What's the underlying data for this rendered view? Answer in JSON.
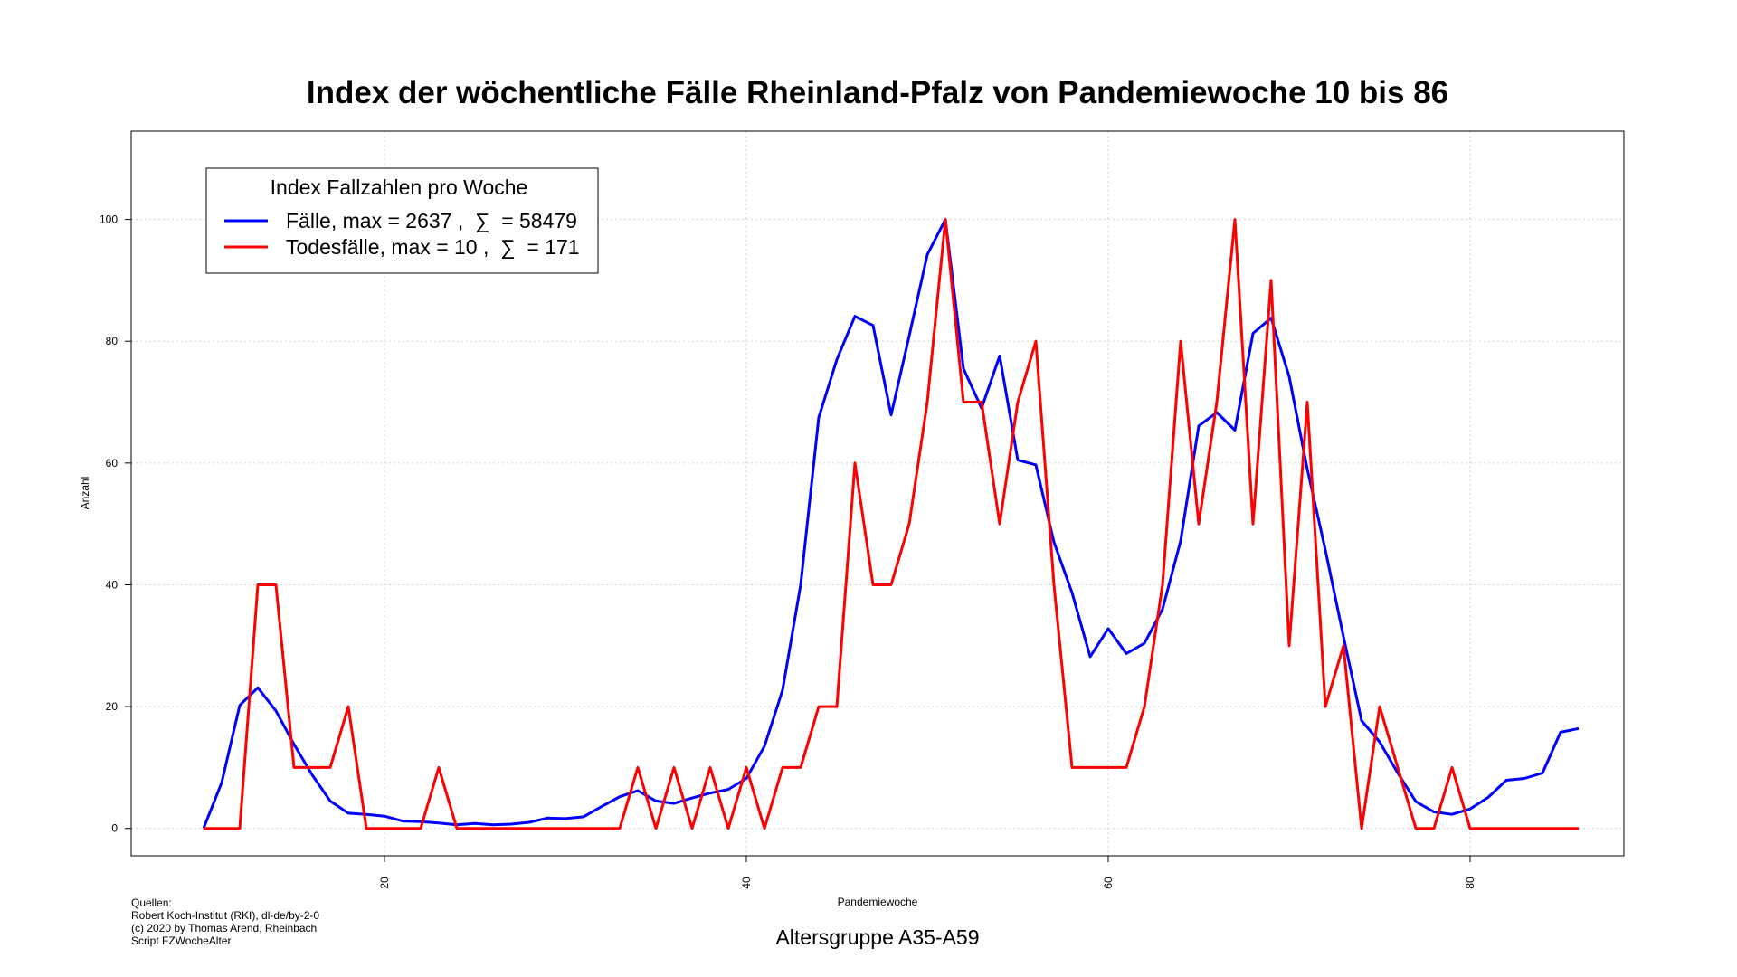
{
  "chart_data": {
    "type": "line",
    "title": "Index der wöchentliche Fälle Rheinland-Pfalz von Pandemiewoche 10 bis 86",
    "subtitle": "Altersgruppe A35-A59",
    "xlabel": "Pandemiewoche",
    "ylabel": "Anzahl",
    "xlim": [
      6,
      88.5
    ],
    "ylim": [
      -4.5,
      114.5
    ],
    "x_ticks": [
      20,
      40,
      60,
      80
    ],
    "y_ticks": [
      0,
      20,
      40,
      60,
      80,
      100
    ],
    "grid": true,
    "legend": {
      "title": "Index Fallzahlen pro Woche",
      "position": "top-left"
    },
    "series": [
      {
        "name": "Fälle",
        "legend_label": "Fälle, max = 2637 ,  ∑  = 58479",
        "color": "#0000ff",
        "x": [
          10,
          11,
          12,
          13,
          14,
          15,
          16,
          17,
          18,
          19,
          20,
          21,
          22,
          23,
          24,
          25,
          26,
          27,
          28,
          29,
          30,
          31,
          32,
          33,
          34,
          35,
          36,
          37,
          38,
          39,
          40,
          41,
          42,
          43,
          44,
          45,
          46,
          47,
          48,
          49,
          50,
          51,
          52,
          53,
          54,
          55,
          56,
          57,
          58,
          59,
          60,
          61,
          62,
          63,
          64,
          65,
          66,
          67,
          68,
          69,
          70,
          71,
          72,
          73,
          74,
          75,
          76,
          77,
          78,
          79,
          80,
          81,
          82,
          83,
          84,
          85,
          86
        ],
        "values": [
          0,
          7.5,
          20.2,
          23.1,
          19.3,
          13.8,
          8.8,
          4.5,
          2.5,
          2.3,
          2.0,
          1.2,
          1.1,
          0.9,
          0.6,
          0.8,
          0.6,
          0.7,
          1.0,
          1.7,
          1.6,
          1.9,
          3.6,
          5.2,
          6.2,
          4.5,
          4.1,
          5.0,
          5.8,
          6.4,
          8.2,
          13.5,
          22.7,
          40.0,
          67.5,
          77.0,
          84.1,
          82.6,
          67.9,
          80.9,
          94.2,
          100,
          75.5,
          69.0,
          77.6,
          60.5,
          59.7,
          47.0,
          38.7,
          28.2,
          32.8,
          28.7,
          30.4,
          36.0,
          47.2,
          66.1,
          68.3,
          65.4,
          81.3,
          83.8,
          74.2,
          59.0,
          45.7,
          31.5,
          17.7,
          14.2,
          9.1,
          4.4,
          2.7,
          2.3,
          3.2,
          5.1,
          7.9,
          8.2,
          9.1,
          15.8,
          16.4
        ]
      },
      {
        "name": "Todesfälle",
        "legend_label": "Todesfälle, max = 10 ,  ∑  = 171",
        "color": "#ff0000",
        "x": [
          10,
          11,
          12,
          13,
          14,
          15,
          16,
          17,
          18,
          19,
          20,
          21,
          22,
          23,
          24,
          25,
          26,
          27,
          28,
          29,
          30,
          31,
          32,
          33,
          34,
          35,
          36,
          37,
          38,
          39,
          40,
          41,
          42,
          43,
          44,
          45,
          46,
          47,
          48,
          49,
          50,
          51,
          52,
          53,
          54,
          55,
          56,
          57,
          58,
          59,
          60,
          61,
          62,
          63,
          64,
          65,
          66,
          67,
          68,
          69,
          70,
          71,
          72,
          73,
          74,
          75,
          76,
          77,
          78,
          79,
          80,
          81,
          82,
          83,
          84,
          85,
          86
        ],
        "values": [
          0,
          0,
          0,
          40,
          40,
          10,
          10,
          10,
          20,
          0,
          0,
          0,
          0,
          10,
          0,
          0,
          0,
          0,
          0,
          0,
          0,
          0,
          0,
          0,
          10,
          0,
          10,
          0,
          10,
          0,
          10,
          0,
          10,
          10,
          20,
          20,
          60,
          40,
          40,
          50,
          70,
          100,
          70,
          70,
          50,
          70,
          80,
          40,
          10,
          10,
          10,
          10,
          20,
          40,
          80,
          50,
          70,
          100,
          50,
          90,
          30,
          70,
          20,
          30,
          0,
          20,
          10,
          0,
          0,
          10,
          0,
          0,
          0,
          0,
          0,
          0,
          0
        ]
      }
    ]
  },
  "sources": {
    "heading": "Quellen:",
    "lines": [
      "Robert Koch-Institut (RKI), dl-de/by-2-0",
      "(c) 2020 by Thomas Arend, Rheinbach",
      "Script FZWocheAlter"
    ]
  }
}
